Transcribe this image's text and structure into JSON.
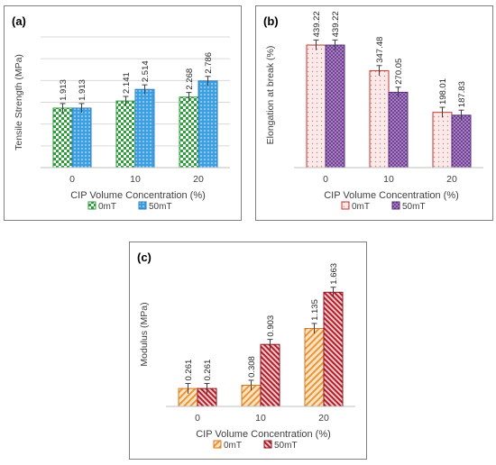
{
  "colors": {
    "a_0mT": "#2e9e3a",
    "a_50mT": "#3d9fe0",
    "b_0mT": "#c0392b",
    "b_50mT": "#6a3a8c",
    "c_0mT": "#e8963a",
    "c_50mT": "#b01e2a",
    "grid": "#d9d9d9",
    "text": "#404040"
  },
  "chart_data": [
    {
      "type": "bar",
      "panel_label": "(a)",
      "categories": [
        "0",
        "10",
        "20"
      ],
      "series": [
        {
          "name": "0mT",
          "values": [
            1.913,
            2.141,
            2.268
          ],
          "labels": [
            "1.913",
            "2.141",
            "2.268"
          ]
        },
        {
          "name": "50mT",
          "values": [
            1.913,
            2.514,
            2.786
          ],
          "labels": [
            "1.913",
            "2.514",
            "2.786"
          ]
        }
      ],
      "xlabel": "CIP Volume Concentration (%)",
      "ylabel": "Tensile Strength (MPa)",
      "ylim": [
        0,
        4.2
      ],
      "grid": true,
      "legend_position": "bottom",
      "error_bars": true
    },
    {
      "type": "bar",
      "panel_label": "(b)",
      "categories": [
        "0",
        "10",
        "20"
      ],
      "series": [
        {
          "name": "0mT",
          "values": [
            439.22,
            347.48,
            198.01
          ],
          "labels": [
            "439.22",
            "347.48",
            "198.01"
          ]
        },
        {
          "name": "50mT",
          "values": [
            439.22,
            270.05,
            187.83
          ],
          "labels": [
            "439.22",
            "270.05",
            "187.83"
          ]
        }
      ],
      "xlabel": "CIP Volume Concentration (%)",
      "ylabel": "Elongation at break (%)",
      "ylim": [
        0,
        520
      ],
      "grid": true,
      "legend_position": "bottom",
      "error_bars": true
    },
    {
      "type": "bar",
      "panel_label": "(c)",
      "categories": [
        "0",
        "10",
        "20"
      ],
      "series": [
        {
          "name": "0mT",
          "values": [
            0.261,
            0.308,
            1.135
          ],
          "labels": [
            "0.261",
            "0.308",
            "1.135"
          ]
        },
        {
          "name": "50mT",
          "values": [
            0.261,
            0.903,
            1.663
          ],
          "labels": [
            "0.261",
            "0.903",
            "1.663"
          ]
        }
      ],
      "xlabel": "CIP Volume Concentration (%)",
      "ylabel": "Modulus (MPa)",
      "ylim": [
        0,
        2.1
      ],
      "grid": true,
      "legend_position": "bottom",
      "error_bars": true
    }
  ]
}
